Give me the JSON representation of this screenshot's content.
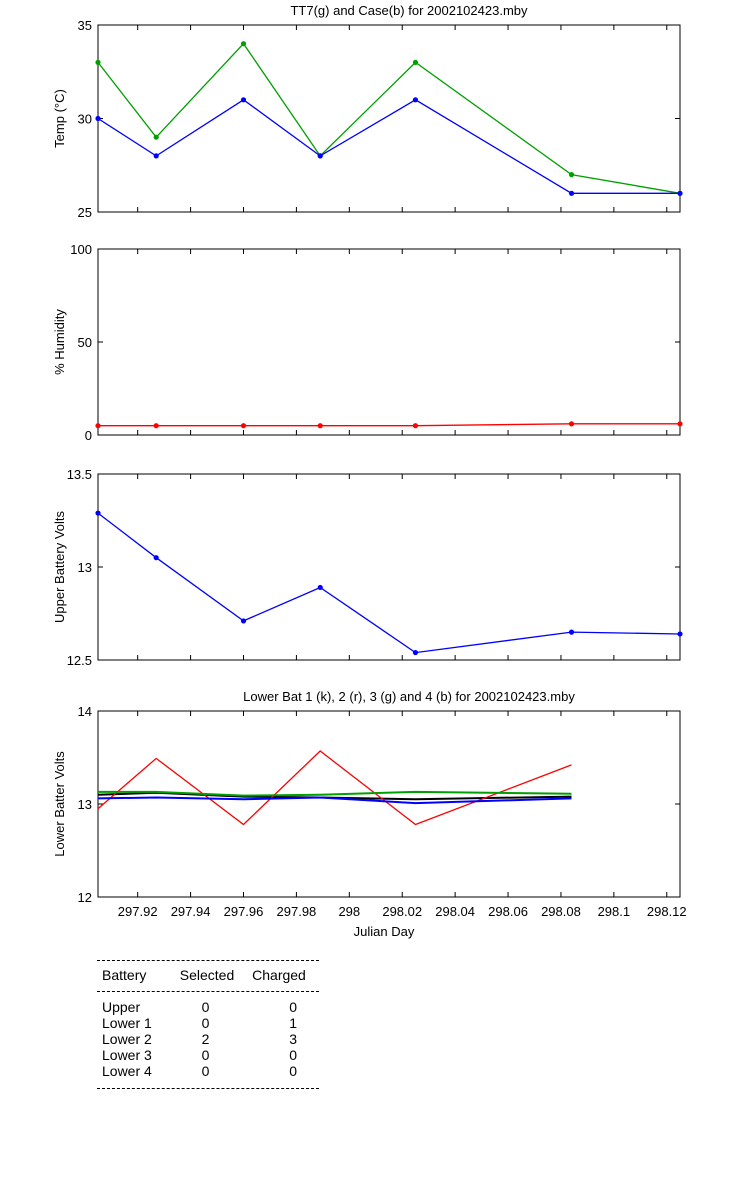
{
  "chart_data": [
    {
      "type": "line",
      "title": "TT7(g) and Case(b) for 2002102423.mby",
      "xlabel": "",
      "ylabel": "Temp  (°C)",
      "xlim": [
        297.905,
        298.125
      ],
      "ylim": [
        25,
        35
      ],
      "yticks": [
        "25",
        "30",
        "35"
      ],
      "x": [
        297.905,
        297.927,
        297.96,
        297.989,
        298.025,
        298.084,
        298.125
      ],
      "series": [
        {
          "color": "#00a000",
          "values": [
            33,
            29,
            34,
            28,
            33,
            27,
            26
          ]
        },
        {
          "color": "#0000ff",
          "values": [
            30,
            28,
            31,
            28,
            31,
            26,
            26
          ]
        }
      ]
    },
    {
      "type": "line",
      "title": "",
      "xlabel": "",
      "ylabel": "% Humidity",
      "xlim": [
        297.905,
        298.125
      ],
      "ylim": [
        0,
        100
      ],
      "yticks": [
        "0",
        "50",
        "100"
      ],
      "x": [
        297.905,
        297.927,
        297.96,
        297.989,
        298.025,
        298.084,
        298.125
      ],
      "series": [
        {
          "color": "#ff0000",
          "values": [
            5,
            5,
            5,
            5,
            5,
            6,
            6
          ]
        }
      ]
    },
    {
      "type": "line",
      "title": "",
      "xlabel": "",
      "ylabel": "Upper Battery Volts",
      "xlim": [
        297.905,
        298.125
      ],
      "ylim": [
        12.5,
        13.5
      ],
      "yticks": [
        "12.5",
        "13",
        "13.5"
      ],
      "x": [
        297.905,
        297.927,
        297.96,
        297.989,
        298.025,
        298.084,
        298.125
      ],
      "series": [
        {
          "color": "#0000ff",
          "values": [
            13.29,
            13.05,
            12.71,
            12.89,
            12.54,
            12.65,
            12.64
          ]
        }
      ]
    },
    {
      "type": "line",
      "title": "Lower Bat 1 (k), 2 (r), 3 (g) and 4 (b) for 2002102423.mby",
      "xlabel": "Julian Day",
      "ylabel": "Lower Batter Volts",
      "xlim": [
        297.905,
        298.125
      ],
      "ylim": [
        12,
        14
      ],
      "yticks": [
        "12",
        "13",
        "14"
      ],
      "xticks": [
        "297.92",
        "297.94",
        "297.96",
        "297.98",
        "298",
        "298.02",
        "298.04",
        "298.06",
        "298.08",
        "298.1",
        "298.12"
      ],
      "xtick_values": [
        297.92,
        297.94,
        297.96,
        297.98,
        298.0,
        298.02,
        298.04,
        298.06,
        298.08,
        298.1,
        298.12
      ],
      "x": [
        297.905,
        297.927,
        297.96,
        297.989,
        298.025,
        298.084
      ],
      "series": [
        {
          "color": "#000000",
          "values": [
            13.1,
            13.12,
            13.08,
            13.07,
            13.05,
            13.08
          ]
        },
        {
          "color": "#ff0000",
          "values": [
            12.95,
            13.49,
            12.78,
            13.57,
            12.78,
            13.42
          ]
        },
        {
          "color": "#00a000",
          "values": [
            13.13,
            13.13,
            13.09,
            13.1,
            13.13,
            13.11
          ]
        },
        {
          "color": "#0000ff",
          "values": [
            13.06,
            13.07,
            13.05,
            13.07,
            13.01,
            13.06
          ]
        }
      ]
    }
  ],
  "table": {
    "headers": [
      "Battery",
      "Selected",
      "Charged"
    ],
    "rows": [
      {
        "battery": "Upper",
        "selected": "0",
        "charged": "0"
      },
      {
        "battery": "Lower 1",
        "selected": "0",
        "charged": "1"
      },
      {
        "battery": "Lower 2",
        "selected": "2",
        "charged": "3"
      },
      {
        "battery": "Lower 3",
        "selected": "0",
        "charged": "0"
      },
      {
        "battery": "Lower 4",
        "selected": "0",
        "charged": "0"
      }
    ]
  }
}
